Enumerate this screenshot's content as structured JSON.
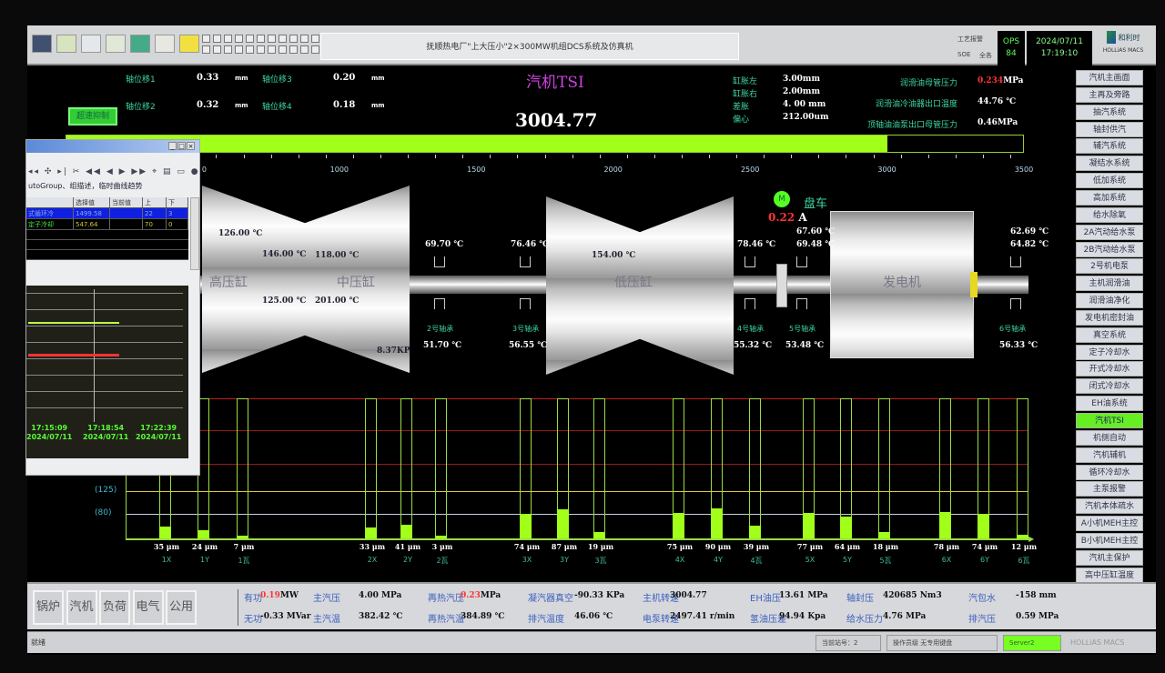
{
  "toolbar": {
    "title": "抚顺热电厂\"上大压小\"2×300MW机组DCS系统及仿真机",
    "alarm_label": "工艺报警",
    "sde_label": "SOE",
    "all_label": "全各",
    "ops_label": "OPS",
    "ops_num": "84",
    "date": "2024/07/11",
    "time": "17:19:10",
    "logo_text": "和利时",
    "logo_sub": "HOLLiAS MACS",
    "icons": [
      "monitor-icon",
      "document-icon",
      "document-icon",
      "export-icon",
      "network-icon",
      "tools-icon",
      "note-icon"
    ]
  },
  "header": {
    "page_title": "汽机TSI",
    "speed": "3004.77",
    "overspeed_button": "超速抑制",
    "axial": [
      {
        "label": "轴位移1",
        "value": "0.33",
        "unit": "mm"
      },
      {
        "label": "轴位移2",
        "value": "0.32",
        "unit": "mm"
      },
      {
        "label": "轴位移3",
        "value": "0.20",
        "unit": "mm"
      },
      {
        "label": "轴位移4",
        "value": "0.18",
        "unit": "mm"
      }
    ],
    "expansion": [
      {
        "label": "缸胀左",
        "value": "3.00mm"
      },
      {
        "label": "缸胀右",
        "value": "2.00mm"
      },
      {
        "label": "差胀",
        "value": "4. 00 mm"
      },
      {
        "label": "偏心",
        "value": "212.00um"
      }
    ],
    "oil": [
      {
        "label": "润滑油母管压力",
        "value": "0.234",
        "unit": "MPa",
        "alarm": true
      },
      {
        "label": "润滑油冷油器出口温度",
        "value": "44.76 ℃",
        "unit": ""
      },
      {
        "label": "顶轴油油泵出口母管压力",
        "value": "0.46MPa",
        "unit": ""
      }
    ]
  },
  "speed_scale": {
    "value": 3004.77,
    "min": 0,
    "max": 3500,
    "ticks": [
      "1000",
      "1500",
      "2000",
      "2500",
      "3000",
      "3500"
    ],
    "partial_tick": "0",
    "fill_color": "#a2ff1a"
  },
  "turbine": {
    "hp_label": "高压缸",
    "ip_label": "中压缸",
    "lp_label": "低压缸",
    "gen_label": "发电机",
    "hp_temps": [
      "126.00 ℃",
      "146.00 ℃",
      "125.00 ℃"
    ],
    "ip_temps": [
      "118.00 ℃",
      "201.00 ℃"
    ],
    "lp_temp": "154.00 ℃",
    "ip_press": "8.37KP",
    "bearings": [
      {
        "name": "2号轴承",
        "top": "69.70 ℃",
        "bottom": "51.70 ℃"
      },
      {
        "name": "3号轴承",
        "top": "76.46 ℃",
        "bottom": "56.55 ℃"
      },
      {
        "name": "4号轴承",
        "top": "78.46 ℃",
        "bottom": "55.32 ℃"
      },
      {
        "name": "5号轴承",
        "top": "67.60 ℃",
        "top2": "69.48 ℃",
        "bottom": "53.48 ℃"
      },
      {
        "name": "6号轴承",
        "top": "62.69 ℃",
        "top2": "64.82 ℃",
        "bottom": "56.33 ℃"
      }
    ],
    "turning": {
      "motor_label": "M",
      "label": "盘车",
      "current": "0.22",
      "unit": "A"
    }
  },
  "chart_data": {
    "type": "bar",
    "categories": [
      "1X",
      "1Y",
      "1瓦",
      "2X",
      "2Y",
      "2瓦",
      "3X",
      "3Y",
      "3瓦",
      "4X",
      "4Y",
      "4瓦",
      "5X",
      "5Y",
      "5瓦",
      "6X",
      "6Y",
      "6瓦"
    ],
    "values": [
      35,
      24,
      7,
      33,
      41,
      3,
      74,
      87,
      19,
      75,
      90,
      39,
      77,
      64,
      18,
      78,
      74,
      12
    ],
    "value_labels": [
      "35 μm",
      "24 μm",
      "7 μm",
      "33 μm",
      "41 μm",
      "3 μm",
      "74 μm",
      "87 μm",
      "19 μm",
      "75 μm",
      "90 μm",
      "39 μm",
      "77 μm",
      "64 μm",
      "18 μm",
      "78 μm",
      "74 μm",
      "12 μm"
    ],
    "unit": "μm",
    "reference_lines": [
      {
        "label": "(125)",
        "value": 125,
        "color": "#d8c840"
      },
      {
        "label": "(80)",
        "value": 80,
        "color": "#c8d0e0"
      }
    ],
    "alarm_lines_color": "#c02020",
    "bar_color": "#a2ff1a"
  },
  "popup": {
    "description": "utoGroup、组描述，临时曲线趋势",
    "columns": [
      "",
      "选择值",
      "当前值",
      "上",
      "下"
    ],
    "rows": [
      {
        "name": "式循环冷",
        "selected": "1499.58",
        "current": "",
        "up": "22",
        "down": "3",
        "highlight": true
      },
      {
        "name": "定子冷却",
        "selected": "547.64",
        "current": "",
        "up": "70",
        "down": "0",
        "highlight": false
      }
    ],
    "times": [
      {
        "t": "17:15:09",
        "d": "2024/07/11"
      },
      {
        "t": "17:18:54",
        "d": "2024/07/11"
      },
      {
        "t": "17:22:39",
        "d": "2024/07/11"
      }
    ]
  },
  "sidebar": {
    "items": [
      "汽机主画面",
      "主再及旁路",
      "抽汽系统",
      "轴封供汽",
      "辅汽系统",
      "凝结水系统",
      "低加系统",
      "高加系统",
      "给水除氧",
      "2A汽动给水泵",
      "2B汽动给水泵",
      "2号机电泵",
      "主机润滑油",
      "润滑油净化",
      "发电机密封油",
      "真空系统",
      "定子冷却水",
      "开式冷却水",
      "闭式冷却水",
      "EH油系统",
      "汽机TSI",
      "机侧自动",
      "汽机辅机",
      "循环冷却水",
      "主泵报警",
      "汽机本体疏水",
      "A小机MEH主控",
      "B小机MEH主控",
      "汽机主保护",
      "高中压缸温度",
      "低温省煤器"
    ],
    "active": 20
  },
  "bottom": {
    "nav": [
      "锅炉",
      "汽机",
      "负荷",
      "电气",
      "公用"
    ],
    "row1": [
      {
        "label": "有功",
        "value": "0.19",
        "unit": "MW",
        "alarm": true
      },
      {
        "label": "主汽压",
        "value": "4.00 MPa"
      },
      {
        "label": "再热汽压",
        "value": "0.23",
        "unit": "MPa",
        "alarm": true
      },
      {
        "label": "凝汽器真空",
        "value": "-90.33 KPa"
      },
      {
        "label": "主机转速",
        "value": "3004.77"
      },
      {
        "label": "EH油压",
        "value": "13.61 MPa"
      },
      {
        "label": "轴封压",
        "value": "420685 Nm3"
      },
      {
        "label": "汽包水",
        "value": "-158 mm"
      }
    ],
    "row2": [
      {
        "label": "无功",
        "value": "-0.33 MVar"
      },
      {
        "label": "主汽温",
        "value": "382.42 ℃"
      },
      {
        "label": "再热汽温",
        "value": "384.89 ℃"
      },
      {
        "label": "排汽温度",
        "value": "46.06 ℃"
      },
      {
        "label": "电泵转速",
        "value": "2497.41 r/min"
      },
      {
        "label": "氢油压差",
        "value": "94.94 Kpa"
      },
      {
        "label": "给水压力",
        "value": "4.76 MPa"
      },
      {
        "label": "排汽压",
        "value": "0.59 MPa"
      }
    ]
  },
  "status": {
    "ready": "就绪",
    "station": "当前站号：2",
    "operator": "操作员级  无专用键盘",
    "server": "Server2",
    "brand": "HOLLiAS MACS"
  }
}
